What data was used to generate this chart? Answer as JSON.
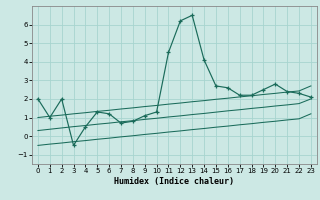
{
  "xlabel": "Humidex (Indice chaleur)",
  "bg_color": "#cce8e4",
  "grid_color": "#a8d4cf",
  "line_color": "#1a6b5a",
  "xlim": [
    -0.5,
    23.5
  ],
  "ylim": [
    -1.5,
    7.0
  ],
  "xticks": [
    0,
    1,
    2,
    3,
    4,
    5,
    6,
    7,
    8,
    9,
    10,
    11,
    12,
    13,
    14,
    15,
    16,
    17,
    18,
    19,
    20,
    21,
    22,
    23
  ],
  "yticks": [
    -1,
    0,
    1,
    2,
    3,
    4,
    5,
    6
  ],
  "main_y": [
    2.0,
    1.0,
    2.0,
    -0.5,
    0.5,
    1.3,
    1.2,
    0.7,
    0.8,
    1.1,
    1.3,
    4.5,
    6.2,
    6.5,
    4.1,
    2.7,
    2.6,
    2.2,
    2.2,
    2.5,
    2.8,
    2.4,
    2.3,
    2.1
  ],
  "upper_band": [
    1.0,
    1.07,
    1.13,
    1.2,
    1.26,
    1.33,
    1.39,
    1.46,
    1.52,
    1.59,
    1.65,
    1.72,
    1.78,
    1.85,
    1.91,
    1.98,
    2.04,
    2.11,
    2.17,
    2.24,
    2.3,
    2.37,
    2.43,
    2.7
  ],
  "mid_band": [
    0.3,
    0.37,
    0.44,
    0.51,
    0.57,
    0.64,
    0.7,
    0.77,
    0.83,
    0.9,
    0.96,
    1.03,
    1.09,
    1.16,
    1.22,
    1.29,
    1.36,
    1.42,
    1.49,
    1.55,
    1.62,
    1.68,
    1.75,
    2.0
  ],
  "lower_band": [
    -0.5,
    -0.43,
    -0.37,
    -0.3,
    -0.24,
    -0.17,
    -0.11,
    -0.04,
    0.02,
    0.09,
    0.15,
    0.22,
    0.28,
    0.35,
    0.41,
    0.48,
    0.54,
    0.61,
    0.67,
    0.74,
    0.8,
    0.87,
    0.93,
    1.2
  ]
}
